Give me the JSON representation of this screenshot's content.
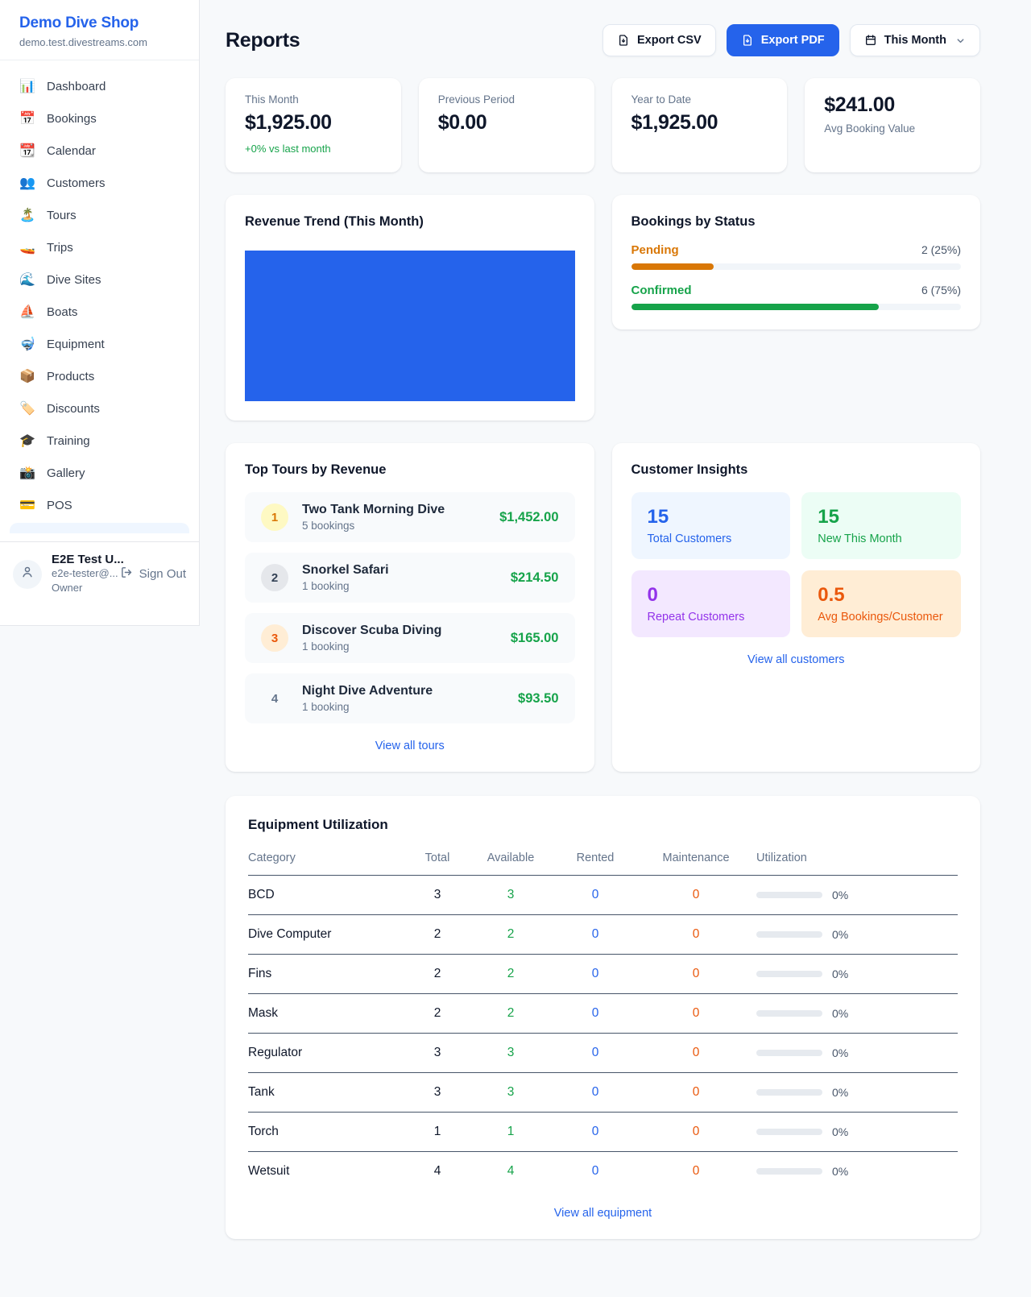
{
  "colors": {
    "accent_blue": "#2563eb",
    "green": "#16a34a",
    "orange": "#ea580c",
    "amber": "#d97706",
    "purple": "#9333ea",
    "chart_bar_blue": "#2563eb"
  },
  "sidebar": {
    "shop_name": "Demo Dive Shop",
    "shop_domain": "demo.test.divestreams.com",
    "items": [
      {
        "icon": "📊",
        "icon_name": "bar-chart-icon",
        "label": "Dashboard"
      },
      {
        "icon": "📅",
        "icon_name": "calendar-date-icon",
        "label": "Bookings"
      },
      {
        "icon": "📆",
        "icon_name": "tear-off-calendar-icon",
        "label": "Calendar"
      },
      {
        "icon": "👥",
        "icon_name": "people-icon",
        "label": "Customers"
      },
      {
        "icon": "🏝️",
        "icon_name": "island-icon",
        "label": "Tours"
      },
      {
        "icon": "🚤",
        "icon_name": "speedboat-icon",
        "label": "Trips"
      },
      {
        "icon": "🌊",
        "icon_name": "wave-icon",
        "label": "Dive Sites"
      },
      {
        "icon": "⛵",
        "icon_name": "sailboat-icon",
        "label": "Boats"
      },
      {
        "icon": "🤿",
        "icon_name": "diving-mask-icon",
        "label": "Equipment"
      },
      {
        "icon": "📦",
        "icon_name": "package-icon",
        "label": "Products"
      },
      {
        "icon": "🏷️",
        "icon_name": "tag-icon",
        "label": "Discounts"
      },
      {
        "icon": "🎓",
        "icon_name": "graduation-cap-icon",
        "label": "Training"
      },
      {
        "icon": "📸",
        "icon_name": "camera-icon",
        "label": "Gallery"
      },
      {
        "icon": "💳",
        "icon_name": "credit-card-icon",
        "label": "POS"
      }
    ],
    "user": {
      "name": "E2E Test U...",
      "email": "e2e-tester@...",
      "role": "Owner",
      "sign_out_label": "Sign Out"
    }
  },
  "header": {
    "title": "Reports",
    "export_csv_label": "Export CSV",
    "export_pdf_label": "Export PDF",
    "period_label": "This Month"
  },
  "stats": [
    {
      "label": "This Month",
      "value": "$1,925.00",
      "delta": "+0% vs last month",
      "value_first": false
    },
    {
      "label": "Previous Period",
      "value": "$0.00",
      "delta": "",
      "value_first": false
    },
    {
      "label": "Year to Date",
      "value": "$1,925.00",
      "delta": "",
      "value_first": false
    },
    {
      "label": "Avg Booking Value",
      "value": "$241.00",
      "delta": "",
      "value_first": true
    }
  ],
  "revenue_trend": {
    "title": "Revenue Trend (This Month)"
  },
  "bookings_by_status": {
    "title": "Bookings by Status",
    "rows": [
      {
        "label": "Pending",
        "count": "2 (25%)",
        "percent": 25,
        "color": "#d97706"
      },
      {
        "label": "Confirmed",
        "count": "6 (75%)",
        "percent": 75,
        "color": "#16a34a"
      }
    ]
  },
  "top_tours": {
    "title": "Top Tours by Revenue",
    "rows": [
      {
        "rank": "1",
        "name": "Two Tank Morning Dive",
        "bookings": "5 bookings",
        "amount": "$1,452.00",
        "badge_bg": "#fef9c3",
        "badge_color": "#d97706"
      },
      {
        "rank": "2",
        "name": "Snorkel Safari",
        "bookings": "1 booking",
        "amount": "$214.50",
        "badge_bg": "#e5e7eb",
        "badge_color": "#334155"
      },
      {
        "rank": "3",
        "name": "Discover Scuba Diving",
        "bookings": "1 booking",
        "amount": "$165.00",
        "badge_bg": "#ffedd5",
        "badge_color": "#ea580c"
      },
      {
        "rank": "4",
        "name": "Night Dive Adventure",
        "bookings": "1 booking",
        "amount": "$93.50",
        "badge_bg": "transparent",
        "badge_color": "#64748b"
      }
    ],
    "link_label": "View all tours"
  },
  "customer_insights": {
    "title": "Customer Insights",
    "tiles": [
      {
        "value": "15",
        "label": "Total Customers",
        "bg": "#eff6ff",
        "color": "#2563eb"
      },
      {
        "value": "15",
        "label": "New This Month",
        "bg": "#ecfdf5",
        "color": "#16a34a"
      },
      {
        "value": "0",
        "label": "Repeat Customers",
        "bg": "#f3e8ff",
        "color": "#9333ea"
      },
      {
        "value": "0.5",
        "label": "Avg Bookings/Customer",
        "bg": "#ffedd5",
        "color": "#ea580c"
      }
    ],
    "link_label": "View all customers"
  },
  "equipment": {
    "title": "Equipment Utilization",
    "columns": [
      "Category",
      "Total",
      "Available",
      "Rented",
      "Maintenance",
      "Utilization"
    ],
    "rows": [
      {
        "category": "BCD",
        "total": "3",
        "available": "3",
        "rented": "0",
        "maintenance": "0",
        "utilization": "0%",
        "utilization_pct": 0
      },
      {
        "category": "Dive Computer",
        "total": "2",
        "available": "2",
        "rented": "0",
        "maintenance": "0",
        "utilization": "0%",
        "utilization_pct": 0
      },
      {
        "category": "Fins",
        "total": "2",
        "available": "2",
        "rented": "0",
        "maintenance": "0",
        "utilization": "0%",
        "utilization_pct": 0
      },
      {
        "category": "Mask",
        "total": "2",
        "available": "2",
        "rented": "0",
        "maintenance": "0",
        "utilization": "0%",
        "utilization_pct": 0
      },
      {
        "category": "Regulator",
        "total": "3",
        "available": "3",
        "rented": "0",
        "maintenance": "0",
        "utilization": "0%",
        "utilization_pct": 0
      },
      {
        "category": "Tank",
        "total": "3",
        "available": "3",
        "rented": "0",
        "maintenance": "0",
        "utilization": "0%",
        "utilization_pct": 0
      },
      {
        "category": "Torch",
        "total": "1",
        "available": "1",
        "rented": "0",
        "maintenance": "0",
        "utilization": "0%",
        "utilization_pct": 0
      },
      {
        "category": "Wetsuit",
        "total": "4",
        "available": "4",
        "rented": "0",
        "maintenance": "0",
        "utilization": "0%",
        "utilization_pct": 0
      }
    ],
    "link_label": "View all equipment"
  },
  "chart_data": [
    {
      "type": "bar",
      "title": "Revenue Trend (This Month)",
      "categories": [
        "This Month"
      ],
      "values": [
        1925.0
      ],
      "xlabel": "",
      "ylabel": "",
      "ylim": [
        0,
        1925
      ],
      "bar_color": "#2563eb",
      "notes": "Single bar fills the entire plot area; no axes, gridlines, ticks or labels are visible"
    },
    {
      "type": "bar",
      "title": "Bookings by Status",
      "categories": [
        "Pending",
        "Confirmed"
      ],
      "values": [
        2,
        6
      ],
      "value_labels": [
        "2 (25%)",
        "6 (75%)"
      ],
      "percents": [
        25,
        75
      ],
      "bar_colors": [
        "#d97706",
        "#16a34a"
      ],
      "layout": "horizontal progress bars, counts right-aligned"
    }
  ]
}
